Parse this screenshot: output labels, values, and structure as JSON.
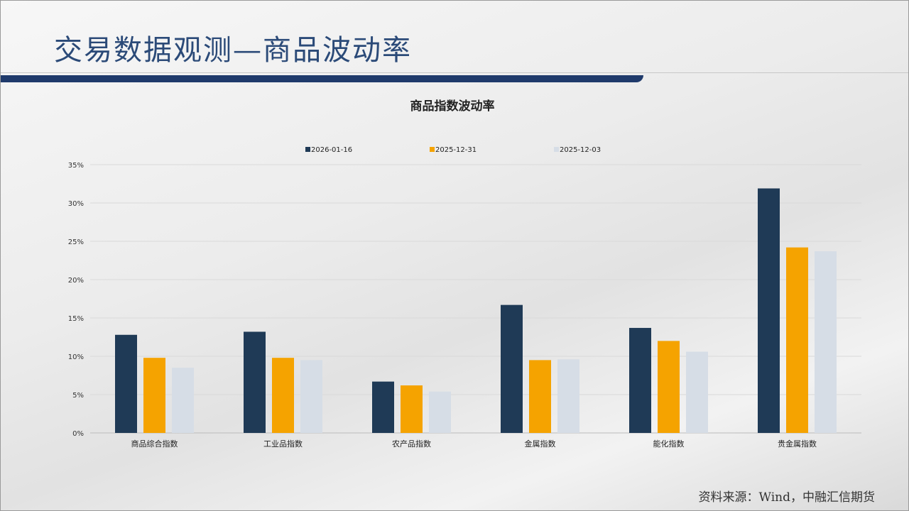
{
  "header": {
    "title": "交易数据观测—商品波动率"
  },
  "footer": {
    "source": "资料来源：Wind，中融汇信期货"
  },
  "chart_data": {
    "type": "bar",
    "title": "商品指数波动率",
    "categories": [
      "商品综合指数",
      "工业品指数",
      "农产品指数",
      "金属指数",
      "能化指数",
      "贵金属指数"
    ],
    "series": [
      {
        "name": "2026-01-16",
        "color": "#1f3a56",
        "values": [
          12.8,
          13.2,
          6.7,
          16.7,
          13.7,
          31.9
        ]
      },
      {
        "name": "2025-12-31",
        "color": "#f5a300",
        "values": [
          9.8,
          9.8,
          6.2,
          9.5,
          12.0,
          24.2
        ]
      },
      {
        "name": "2025-12-03",
        "color": "#d6dde6",
        "values": [
          8.5,
          9.5,
          5.4,
          9.6,
          10.6,
          23.7
        ]
      }
    ],
    "ylim": [
      0,
      35
    ],
    "yticks": [
      0,
      5,
      10,
      15,
      20,
      25,
      30,
      35
    ],
    "ytick_labels": [
      "0%",
      "5%",
      "10%",
      "15%",
      "20%",
      "25%",
      "30%",
      "35%"
    ],
    "grid": true,
    "legend": "top"
  }
}
